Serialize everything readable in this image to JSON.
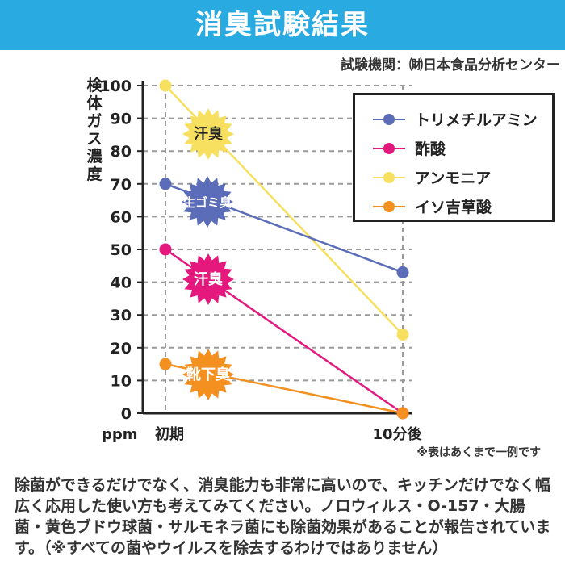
{
  "header": {
    "title": "消臭試験結果"
  },
  "source": "試験機関：㈶日本食品分析センター",
  "note": "※表はあくまで一例です",
  "description": "除菌ができるだけでなく、消臭能力も非常に高いので、キッチンだけでなく幅広く応用した使い方も考えてみてください。ノロウィルス・O-157・大腸菌・黄色ブドウ球菌・サルモネラ菌にも除菌効果があることが報告されています。（※すべての菌やウイルスを除去するわけではありません）",
  "chart_data": {
    "type": "line",
    "title": "消臭試験結果",
    "ylabel": "検体ガス濃度",
    "unit": "ppm",
    "ylim": [
      0,
      100
    ],
    "yticks": [
      "0",
      "10",
      "20",
      "30",
      "40",
      "50",
      "60",
      "70",
      "80",
      "90",
      "100"
    ],
    "categories": [
      "初期",
      "10分後"
    ],
    "grid": true,
    "legend": "top-right",
    "series": [
      {
        "name": "トリメチルアミン",
        "values": [
          70,
          43
        ],
        "color": "#5b6db8",
        "badge": "生ゴミ臭"
      },
      {
        "name": "酢酸",
        "values": [
          50,
          0
        ],
        "color": "#e5187e",
        "badge": "汗臭"
      },
      {
        "name": "アンモニア",
        "values": [
          100,
          24
        ],
        "color": "#f7e060",
        "badge": "汗臭"
      },
      {
        "name": "イソ吉草酸",
        "values": [
          15,
          0
        ],
        "color": "#f39020",
        "badge": "靴下臭"
      }
    ]
  }
}
